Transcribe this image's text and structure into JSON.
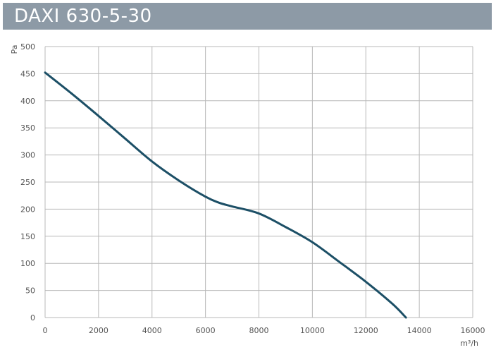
{
  "header": {
    "title": "DAXI 630-5-30"
  },
  "colors": {
    "header_bg": "#8d9aa6",
    "curve": "#1c4f66",
    "grid": "#b8b8b8"
  },
  "chart_data": {
    "type": "line",
    "title": "DAXI 630-5-30",
    "xlabel": "m³/h",
    "ylabel": "Pa",
    "xlim": [
      0,
      16000
    ],
    "ylim": [
      0,
      500
    ],
    "xticks": [
      0,
      2000,
      4000,
      6000,
      8000,
      10000,
      12000,
      14000,
      16000
    ],
    "yticks": [
      0,
      50,
      100,
      150,
      200,
      250,
      300,
      350,
      400,
      450,
      500
    ],
    "grid": true,
    "series": [
      {
        "x": [
          0,
          1000,
          2000,
          3000,
          4000,
          5000,
          6000,
          6500,
          7000,
          8000,
          9000,
          10000,
          11000,
          12000,
          13000,
          13500
        ],
        "y": [
          452,
          413,
          372,
          330,
          288,
          253,
          223,
          212,
          205,
          192,
          167,
          139,
          103,
          66,
          25,
          0
        ]
      }
    ]
  }
}
